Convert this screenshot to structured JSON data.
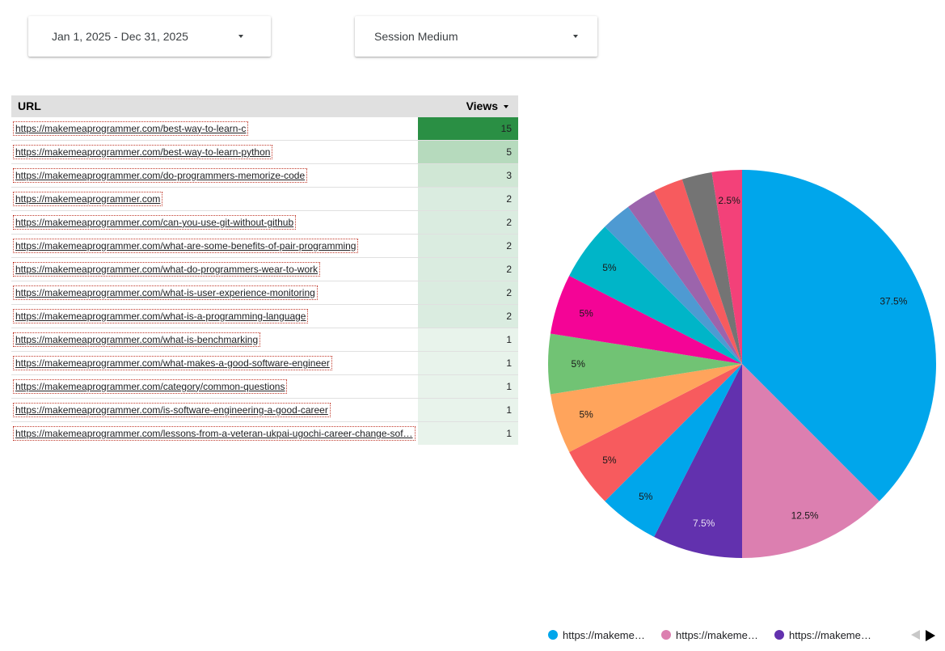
{
  "controls": {
    "date_range": "Jan 1, 2025 - Dec 31, 2025",
    "session_medium": "Session Medium"
  },
  "table": {
    "columns": [
      "URL",
      "Views"
    ],
    "rows": [
      {
        "url": "https://makemeaprogrammer.com/best-way-to-learn-c",
        "views": "15"
      },
      {
        "url": "https://makemeaprogrammer.com/best-way-to-learn-python",
        "views": "5"
      },
      {
        "url": "https://makemeaprogrammer.com/do-programmers-memorize-code",
        "views": "3"
      },
      {
        "url": "https://makemeaprogrammer.com",
        "views": "2"
      },
      {
        "url": "https://makemeaprogrammer.com/can-you-use-git-without-github",
        "views": "2"
      },
      {
        "url": "https://makemeaprogrammer.com/what-are-some-benefits-of-pair-programming",
        "views": "2"
      },
      {
        "url": "https://makemeaprogrammer.com/what-do-programmers-wear-to-work",
        "views": "2"
      },
      {
        "url": "https://makemeaprogrammer.com/what-is-user-experience-monitoring",
        "views": "2"
      },
      {
        "url": "https://makemeaprogrammer.com/what-is-a-programming-language",
        "views": "2"
      },
      {
        "url": "https://makemeaprogrammer.com/what-is-benchmarking",
        "views": "1"
      },
      {
        "url": "https://makemeaprogrammer.com/what-makes-a-good-software-engineer",
        "views": "1"
      },
      {
        "url": "https://makemeaprogrammer.com/category/common-questions",
        "views": "1"
      },
      {
        "url": "https://makemeaprogrammer.com/is-software-engineering-a-good-career",
        "views": "1"
      },
      {
        "url": "https://makemeaprogrammer.com/lessons-from-a-veteran-ukpai-ugochi-career-change-sof…",
        "views": "1"
      }
    ],
    "heat_colors": {
      "15": "#2a8f44",
      "5": "#b6dabd",
      "3": "#d0e7d5",
      "2": "#daece0",
      "1": "#e8f3eb"
    }
  },
  "chart_data": {
    "type": "pie",
    "slices": [
      {
        "percent": 37.5,
        "label": "37.5%",
        "color": "#00a6eb"
      },
      {
        "percent": 12.5,
        "label": "12.5%",
        "color": "#dc7fb0"
      },
      {
        "percent": 7.5,
        "label": "7.5%",
        "color": "#6231ae"
      },
      {
        "percent": 5,
        "label": "5%",
        "color": "#00a6eb"
      },
      {
        "percent": 5,
        "label": "5%",
        "color": "#f75b5e"
      },
      {
        "percent": 5,
        "label": "5%",
        "color": "#ffa45c"
      },
      {
        "percent": 5,
        "label": "5%",
        "color": "#71c374"
      },
      {
        "percent": 5,
        "label": "5%",
        "color": "#f40496"
      },
      {
        "percent": 5,
        "label": "5%",
        "color": "#00b5c8"
      },
      {
        "percent": 2.5,
        "label": "",
        "color": "#4e9ad2"
      },
      {
        "percent": 2.5,
        "label": "",
        "color": "#9c64ac"
      },
      {
        "percent": 2.5,
        "label": "",
        "color": "#f75b5e"
      },
      {
        "percent": 2.5,
        "label": "",
        "color": "#747474"
      },
      {
        "percent": 2.5,
        "label": "2.5%",
        "color": "#f34179"
      }
    ],
    "legend": [
      {
        "name": "https://makeme…",
        "color": "#00a6eb"
      },
      {
        "name": "https://makeme…",
        "color": "#dc7fb0"
      },
      {
        "name": "https://makeme…",
        "color": "#6231ae"
      }
    ],
    "legend_placement": "bottom"
  }
}
